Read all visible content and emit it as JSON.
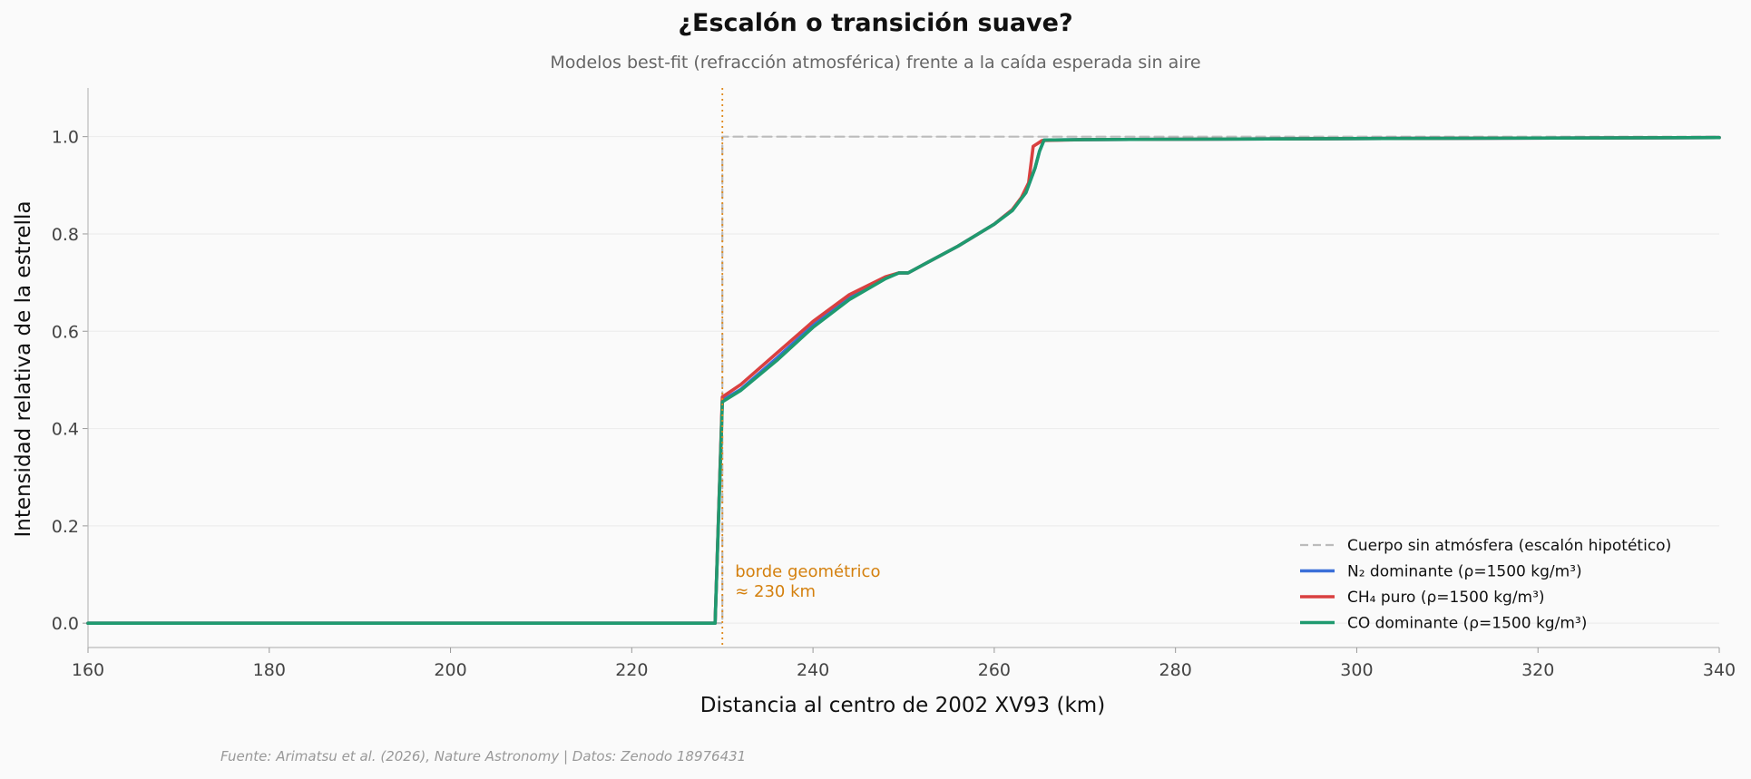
{
  "chart_data": {
    "type": "line",
    "title": "¿Escalón o transición suave?",
    "subtitle": "Modelos best-fit (refracción atmosférica) frente a la caída esperada sin aire",
    "xlabel": "Distancia al centro de 2002 XV93 (km)",
    "ylabel": "Intensidad relativa de la estrella",
    "xlim": [
      160,
      340
    ],
    "ylim": [
      -0.05,
      1.1
    ],
    "xticks": [
      "160",
      "180",
      "200",
      "220",
      "240",
      "260",
      "280",
      "300",
      "320",
      "340"
    ],
    "yticks": [
      "0.0",
      "0.2",
      "0.4",
      "0.6",
      "0.8",
      "1.0"
    ],
    "grid": "horizontal",
    "legend_position": "lower-right",
    "annotation": {
      "lines": [
        "borde geométrico",
        "≈ 230 km"
      ],
      "x": 230,
      "color": "#e08a1e"
    },
    "series": [
      {
        "name": "Cuerpo sin atmósfera (escalón hipotético)",
        "color": "#bbbbbb",
        "style": "dashed",
        "x": [
          160,
          230,
          230,
          340
        ],
        "y": [
          0,
          0,
          1.0,
          1.0
        ]
      },
      {
        "name": "N₂ dominante (ρ=1500 kg/m³)",
        "color": "#3a6fd8",
        "style": "solid",
        "x": [
          160,
          229.2,
          230,
          232,
          236,
          240,
          244,
          248,
          249.5,
          250.5,
          252,
          256,
          260,
          262,
          263.5,
          264.5,
          265,
          265.5,
          270,
          300,
          340
        ],
        "y": [
          0,
          0,
          0.458,
          0.48,
          0.545,
          0.612,
          0.668,
          0.71,
          0.72,
          0.72,
          0.735,
          0.775,
          0.82,
          0.85,
          0.885,
          0.935,
          0.97,
          0.993,
          0.994,
          0.996,
          0.998
        ]
      },
      {
        "name": "CH₄ puro (ρ=1500 kg/m³)",
        "color": "#d94040",
        "style": "solid",
        "x": [
          160,
          229.2,
          230,
          232,
          236,
          240,
          244,
          248,
          249.5,
          250.5,
          252,
          256,
          260,
          262,
          263,
          263.8,
          264.3,
          265.3,
          270,
          300,
          340
        ],
        "y": [
          0,
          0,
          0.465,
          0.49,
          0.555,
          0.62,
          0.675,
          0.712,
          0.72,
          0.72,
          0.735,
          0.775,
          0.82,
          0.85,
          0.875,
          0.905,
          0.98,
          0.992,
          0.994,
          0.996,
          0.998
        ]
      },
      {
        "name": "CO dominante (ρ=1500 kg/m³)",
        "color": "#1f9a6f",
        "style": "solid",
        "x": [
          160,
          229.2,
          230,
          232,
          236,
          240,
          244,
          248,
          249.5,
          250.5,
          252,
          256,
          260,
          262,
          263.5,
          264.5,
          265,
          265.5,
          270,
          300,
          340
        ],
        "y": [
          0,
          0,
          0.455,
          0.478,
          0.54,
          0.608,
          0.665,
          0.708,
          0.72,
          0.72,
          0.735,
          0.775,
          0.82,
          0.848,
          0.885,
          0.935,
          0.97,
          0.993,
          0.994,
          0.996,
          0.998
        ]
      }
    ]
  },
  "footer": {
    "source": "Fuente: Arimatsu et al. (2026), Nature Astronomy | Datos: Zenodo 18976431"
  }
}
